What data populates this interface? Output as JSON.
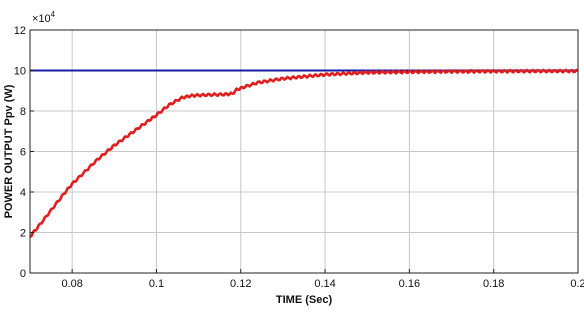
{
  "chart_data": {
    "type": "line",
    "title": "",
    "xlabel": "TIME (Sec)",
    "ylabel": "POWER OUTPUT Ppv (W)",
    "y_multiplier_label": "×10",
    "y_multiplier_exp": "4",
    "xlim": [
      0.07,
      0.2
    ],
    "ylim": [
      0,
      12
    ],
    "xticks": [
      0.08,
      0.1,
      0.12,
      0.14,
      0.16,
      0.18,
      0.2
    ],
    "xtick_labels": [
      "0.08",
      "0.1",
      "0.12",
      "0.14",
      "0.16",
      "0.18",
      "0.2"
    ],
    "yticks": [
      0,
      2,
      4,
      6,
      8,
      10,
      12
    ],
    "ytick_labels": [
      "0",
      "2",
      "4",
      "6",
      "8",
      "10",
      "12"
    ],
    "grid": true,
    "legend": "none",
    "colors": {
      "reference": "#1a1aa8",
      "output": "#e01e1e"
    },
    "series": [
      {
        "color": "#1a1aa8",
        "x": [
          0.07,
          0.2
        ],
        "y": [
          10,
          10
        ]
      },
      {
        "color": "#e01e1e",
        "x": [
          0.07,
          0.072,
          0.075,
          0.078,
          0.08,
          0.083,
          0.086,
          0.09,
          0.094,
          0.098,
          0.1,
          0.103,
          0.106,
          0.108,
          0.11,
          0.113,
          0.116,
          0.118,
          0.119,
          0.121,
          0.124,
          0.127,
          0.13,
          0.135,
          0.14,
          0.145,
          0.15,
          0.16,
          0.17,
          0.18,
          0.19,
          0.2
        ],
        "y": [
          1.8,
          2.3,
          3.1,
          3.9,
          4.4,
          5.0,
          5.6,
          6.3,
          6.9,
          7.5,
          7.8,
          8.3,
          8.65,
          8.75,
          8.78,
          8.8,
          8.82,
          8.85,
          9.05,
          9.2,
          9.4,
          9.5,
          9.6,
          9.7,
          9.8,
          9.85,
          9.9,
          9.93,
          9.95,
          9.96,
          9.97,
          9.97
        ]
      }
    ]
  }
}
